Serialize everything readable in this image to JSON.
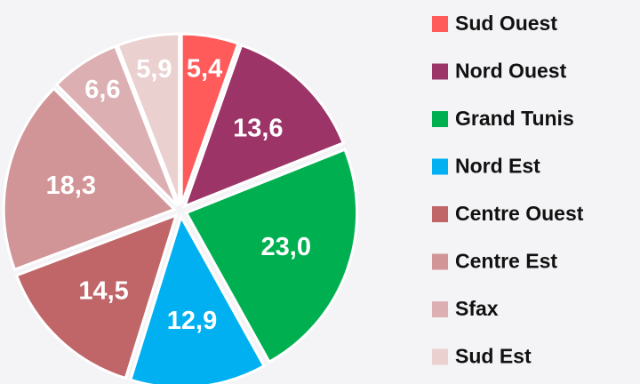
{
  "chart_data": {
    "type": "pie",
    "categories": [
      "Sud Ouest",
      "Nord Ouest",
      "Grand Tunis",
      "Nord Est",
      "Centre Ouest",
      "Centre Est",
      "Sfax",
      "Sud Est"
    ],
    "values": [
      5.4,
      13.6,
      23.0,
      12.9,
      14.5,
      18.3,
      6.6,
      5.9
    ],
    "value_labels": [
      "5,4",
      "13,6",
      "23,0",
      "12,9",
      "14,5",
      "18,3",
      "6,6",
      "5,9"
    ],
    "colors": [
      "#ff5b5b",
      "#9c3468",
      "#00b050",
      "#00b0f0",
      "#c06668",
      "#d29597",
      "#dcb0b2",
      "#ebd0d0"
    ],
    "legend": "right"
  }
}
